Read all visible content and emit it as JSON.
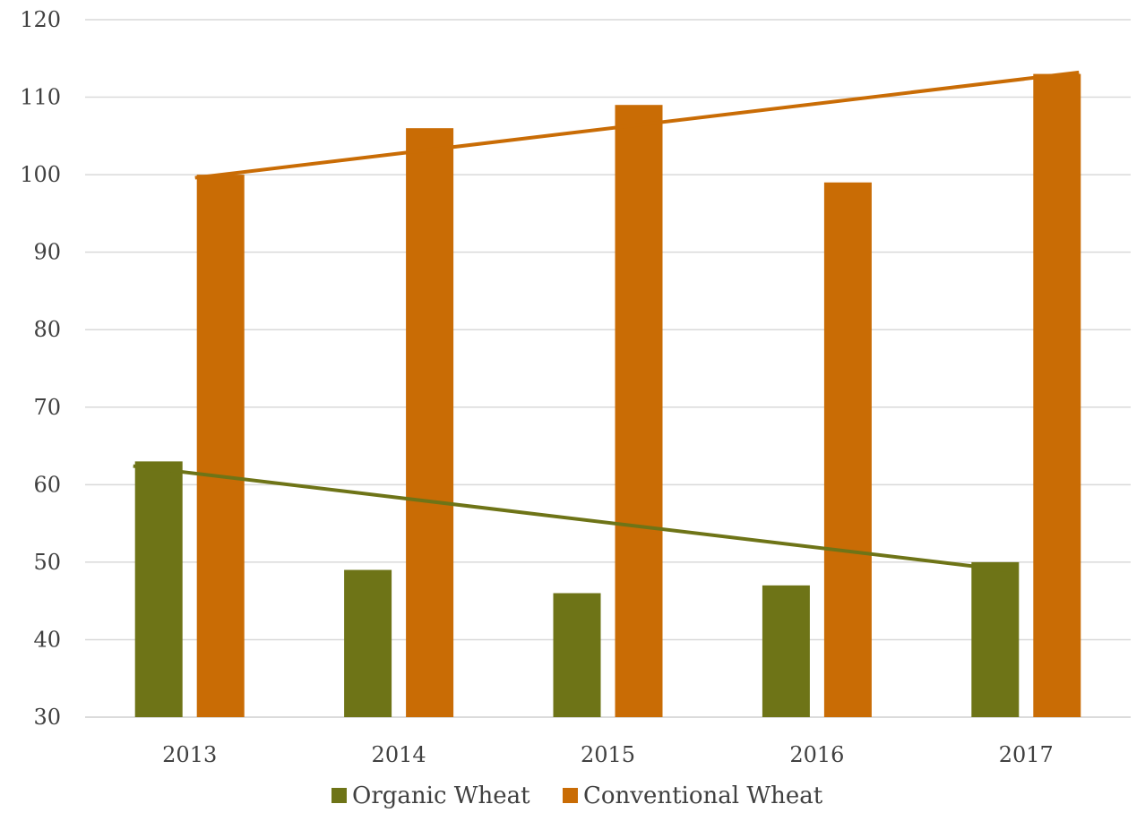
{
  "chart_data": {
    "type": "bar",
    "categories": [
      "2013",
      "2014",
      "2015",
      "2016",
      "2017"
    ],
    "series": [
      {
        "name": "Organic Wheat",
        "values": [
          63,
          49,
          46,
          47,
          50
        ],
        "color": "#6e7417"
      },
      {
        "name": "Conventional Wheat",
        "values": [
          100,
          106,
          109,
          99,
          113
        ],
        "color": "#c96c05"
      }
    ],
    "trendlines": [
      {
        "series": "Organic Wheat",
        "type": "linear",
        "start": 62.4,
        "end": 48.8,
        "color": "#6e7417"
      },
      {
        "series": "Conventional Wheat",
        "type": "linear",
        "start": 99.6,
        "end": 113.2,
        "color": "#c96c05"
      }
    ],
    "ylim": [
      30,
      120
    ],
    "yticks": [
      "30",
      "40",
      "50",
      "60",
      "70",
      "80",
      "90",
      "100",
      "110",
      "120"
    ],
    "grid": true,
    "legend_position": "bottom"
  }
}
